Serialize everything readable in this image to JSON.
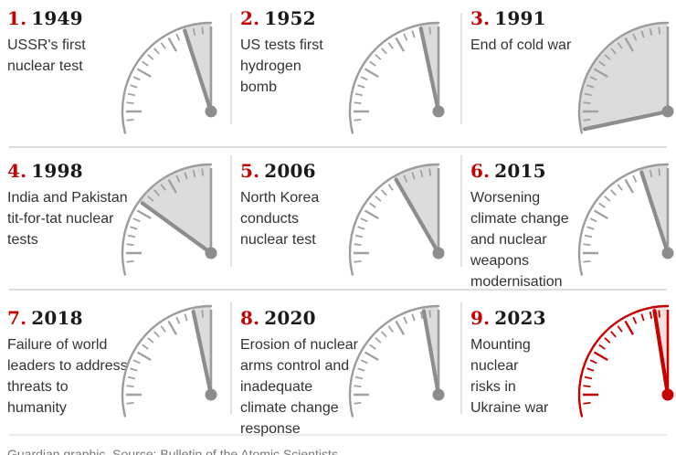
{
  "colors": {
    "accent_red": "#c70000",
    "year_text": "#1a1a1a",
    "body_text": "#333333",
    "clock_gray_line": "#9c9c9c",
    "clock_gray_tick": "#a1a1a1",
    "clock_gray_hand": "#8d8d8d",
    "wedge_gray": "#dcdcdc",
    "clock_red_line": "#c70000",
    "clock_red_tick": "#c70000",
    "clock_red_hand": "#c70000",
    "wedge_red": "#f7e0e0",
    "divider": "#dedede",
    "credit_text": "#767676"
  },
  "panels": [
    {
      "number": "1.",
      "year": "1949",
      "lines": [
        "USSR's first",
        "nuclear test"
      ],
      "minutes_to_midnight": 3,
      "theme": "gray"
    },
    {
      "number": "2.",
      "year": "1952",
      "lines": [
        "US tests first",
        "hydrogen",
        "bomb"
      ],
      "minutes_to_midnight": 2,
      "theme": "gray"
    },
    {
      "number": "3.",
      "year": "1991",
      "lines": [
        "End of cold war"
      ],
      "minutes_to_midnight": 17,
      "theme": "gray"
    },
    {
      "number": "4.",
      "year": "1998",
      "lines": [
        "India and Pakistan",
        "tit-for-tat nuclear",
        "tests"
      ],
      "minutes_to_midnight": 9,
      "theme": "gray"
    },
    {
      "number": "5.",
      "year": "2006",
      "lines": [
        "North Korea",
        "conducts",
        "nuclear test"
      ],
      "minutes_to_midnight": 5,
      "theme": "gray"
    },
    {
      "number": "6.",
      "year": "2015",
      "lines": [
        "Worsening",
        "climate change",
        "and nuclear",
        "weapons",
        "modernisation"
      ],
      "minutes_to_midnight": 3,
      "theme": "gray"
    },
    {
      "number": "7.",
      "year": "2018",
      "lines": [
        "Failure of world",
        "leaders to address",
        "threats to",
        "humanity"
      ],
      "minutes_to_midnight": 2,
      "theme": "gray"
    },
    {
      "number": "8.",
      "year": "2020",
      "lines": [
        "Erosion of nuclear",
        "arms control and",
        "inadequate",
        "climate change",
        "response"
      ],
      "minutes_to_midnight": 1.67,
      "theme": "gray"
    },
    {
      "number": "9.",
      "year": "2023",
      "lines": [
        "Mounting",
        "nuclear",
        "risks in",
        "Ukraine war"
      ],
      "minutes_to_midnight": 1.5,
      "theme": "red"
    }
  ],
  "footer": {
    "credit": "Guardian graphic. Source: Bulletin of the Atomic Scientists"
  },
  "chart_data": {
    "type": "gauge",
    "title": "",
    "subtitle": "",
    "gauge_style": "quarter clock face (9 o'clock to midnight), tick every minute, long tick every 5 minutes, shaded wedge between hand and midnight",
    "gauge_range_minutes_to_midnight": [
      0,
      17
    ],
    "legend_position": "none",
    "highlight": "panel 9 (2023) drawn in red",
    "points": [
      {
        "label": "1. 1949",
        "event": "USSR's first nuclear test",
        "minutes_to_midnight": 3
      },
      {
        "label": "2. 1952",
        "event": "US tests first hydrogen bomb",
        "minutes_to_midnight": 2
      },
      {
        "label": "3. 1991",
        "event": "End of cold war",
        "minutes_to_midnight": 17
      },
      {
        "label": "4. 1998",
        "event": "India and Pakistan tit-for-tat nuclear tests",
        "minutes_to_midnight": 9
      },
      {
        "label": "5. 2006",
        "event": "North Korea conducts nuclear test",
        "minutes_to_midnight": 5
      },
      {
        "label": "6. 2015",
        "event": "Worsening climate change and nuclear weapons modernisation",
        "minutes_to_midnight": 3
      },
      {
        "label": "7. 2018",
        "event": "Failure of world leaders to address threats to humanity",
        "minutes_to_midnight": 2
      },
      {
        "label": "8. 2020",
        "event": "Erosion of nuclear arms control and inadequate climate change response",
        "minutes_to_midnight": 1.67
      },
      {
        "label": "9. 2023",
        "event": "Mounting nuclear risks in Ukraine war",
        "minutes_to_midnight": 1.5
      }
    ]
  }
}
